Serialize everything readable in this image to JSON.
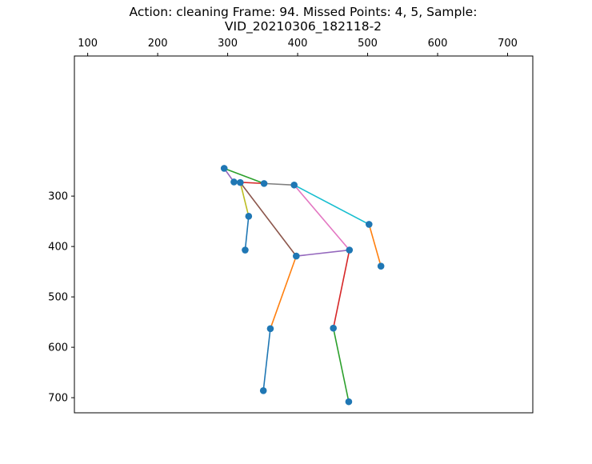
{
  "chart_data": {
    "type": "scatter",
    "title_lines": [
      "Action: cleaning   Frame: 94. Missed Points: 4, 5,  Sample:",
      "VID_20210306_182118-2"
    ],
    "xlabel": "",
    "ylabel": "",
    "xlim": [
      81,
      736
    ],
    "ylim": [
      730,
      22
    ],
    "y_inverted": true,
    "x_axis_position": "top",
    "grid": false,
    "legend": "none",
    "x_ticks": [
      100,
      200,
      300,
      400,
      500,
      600,
      700
    ],
    "y_ticks": [
      300,
      400,
      500,
      600,
      700
    ],
    "points": [
      {
        "x": 295,
        "y": 245
      },
      {
        "x": 309,
        "y": 272
      },
      {
        "x": 318,
        "y": 273
      },
      {
        "x": 352,
        "y": 275
      },
      {
        "x": 395,
        "y": 278
      },
      {
        "x": 330,
        "y": 340
      },
      {
        "x": 502,
        "y": 356
      },
      {
        "x": 325,
        "y": 407
      },
      {
        "x": 474,
        "y": 407
      },
      {
        "x": 398,
        "y": 419
      },
      {
        "x": 519,
        "y": 439
      },
      {
        "x": 451,
        "y": 562
      },
      {
        "x": 361,
        "y": 563
      },
      {
        "x": 351,
        "y": 686
      },
      {
        "x": 473,
        "y": 708
      }
    ],
    "segments": [
      {
        "from": [
          295,
          245
        ],
        "to": [
          309,
          272
        ],
        "color": "#9467bd"
      },
      {
        "from": [
          295,
          245
        ],
        "to": [
          352,
          275
        ],
        "color": "#2ca02c"
      },
      {
        "from": [
          309,
          272
        ],
        "to": [
          352,
          275
        ],
        "color": "#d62728"
      },
      {
        "from": [
          318,
          273
        ],
        "to": [
          330,
          340
        ],
        "color": "#bcbd22"
      },
      {
        "from": [
          330,
          340
        ],
        "to": [
          325,
          407
        ],
        "color": "#1f77b4"
      },
      {
        "from": [
          352,
          275
        ],
        "to": [
          395,
          278
        ],
        "color": "#7f7f7f"
      },
      {
        "from": [
          395,
          278
        ],
        "to": [
          502,
          356
        ],
        "color": "#17becf"
      },
      {
        "from": [
          502,
          356
        ],
        "to": [
          519,
          439
        ],
        "color": "#ff7f0e"
      },
      {
        "from": [
          318,
          273
        ],
        "to": [
          398,
          419
        ],
        "color": "#8c564b"
      },
      {
        "from": [
          395,
          278
        ],
        "to": [
          474,
          407
        ],
        "color": "#e377c2"
      },
      {
        "from": [
          398,
          419
        ],
        "to": [
          474,
          407
        ],
        "color": "#9467bd"
      },
      {
        "from": [
          398,
          419
        ],
        "to": [
          361,
          563
        ],
        "color": "#ff7f0e"
      },
      {
        "from": [
          361,
          563
        ],
        "to": [
          351,
          686
        ],
        "color": "#1f77b4"
      },
      {
        "from": [
          474,
          407
        ],
        "to": [
          451,
          562
        ],
        "color": "#d62728"
      },
      {
        "from": [
          451,
          562
        ],
        "to": [
          473,
          708
        ],
        "color": "#2ca02c"
      }
    ],
    "point_color": "#1f77b4",
    "colors": {
      "axes": "#000000",
      "background": "#ffffff"
    }
  }
}
